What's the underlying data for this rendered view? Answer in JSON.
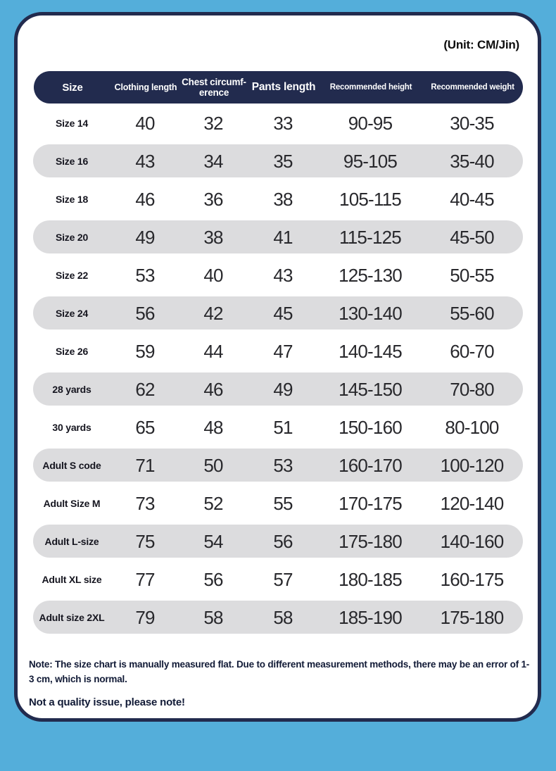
{
  "unit_label": "(Unit: CM/Jin)",
  "chart_data": {
    "type": "table",
    "title": "",
    "unit": "(Unit: CM/Jin)",
    "columns": [
      "Size",
      "Clothing length",
      "Chest circumf-\nerence",
      "Pants length",
      "Recommended height",
      "Recommended weight"
    ],
    "rows": [
      [
        "Size 14",
        "40",
        "32",
        "33",
        "90-95",
        "30-35"
      ],
      [
        "Size 16",
        "43",
        "34",
        "35",
        "95-105",
        "35-40"
      ],
      [
        "Size 18",
        "46",
        "36",
        "38",
        "105-115",
        "40-45"
      ],
      [
        "Size 20",
        "49",
        "38",
        "41",
        "115-125",
        "45-50"
      ],
      [
        "Size 22",
        "53",
        "40",
        "43",
        "125-130",
        "50-55"
      ],
      [
        "Size 24",
        "56",
        "42",
        "45",
        "130-140",
        "55-60"
      ],
      [
        "Size 26",
        "59",
        "44",
        "47",
        "140-145",
        "60-70"
      ],
      [
        "28 yards",
        "62",
        "46",
        "49",
        "145-150",
        "70-80"
      ],
      [
        "30 yards",
        "65",
        "48",
        "51",
        "150-160",
        "80-100"
      ],
      [
        "Adult S code",
        "71",
        "50",
        "53",
        "160-170",
        "100-120"
      ],
      [
        "Adult Size M",
        "73",
        "52",
        "55",
        "170-175",
        "120-140"
      ],
      [
        "Adult L-size",
        "75",
        "54",
        "56",
        "175-180",
        "140-160"
      ],
      [
        "Adult XL size",
        "77",
        "56",
        "57",
        "180-185",
        "160-175"
      ],
      [
        "Adult size 2XL",
        "79",
        "58",
        "58",
        "185-190",
        "175-180"
      ]
    ],
    "layout": {
      "striped_rows": "even rows (2nd, 4th, ...) have gray pill background",
      "header_style": "dark navy pill with white text"
    }
  },
  "notes": {
    "measurement_note": "Note: The size chart is manually measured flat. Due to different measurement methods, there may be an error of 1-3 cm, which is normal.",
    "quality_note": "Not a quality issue, please note!"
  },
  "colors": {
    "page_background": "#54aeda",
    "card_background": "#ffffff",
    "card_border": "#222b4e",
    "header_background": "#222b4e",
    "header_text": "#ffffff",
    "row_stripe": "#dcdcde",
    "number_text": "#28282c",
    "note_text": "#111a36"
  }
}
